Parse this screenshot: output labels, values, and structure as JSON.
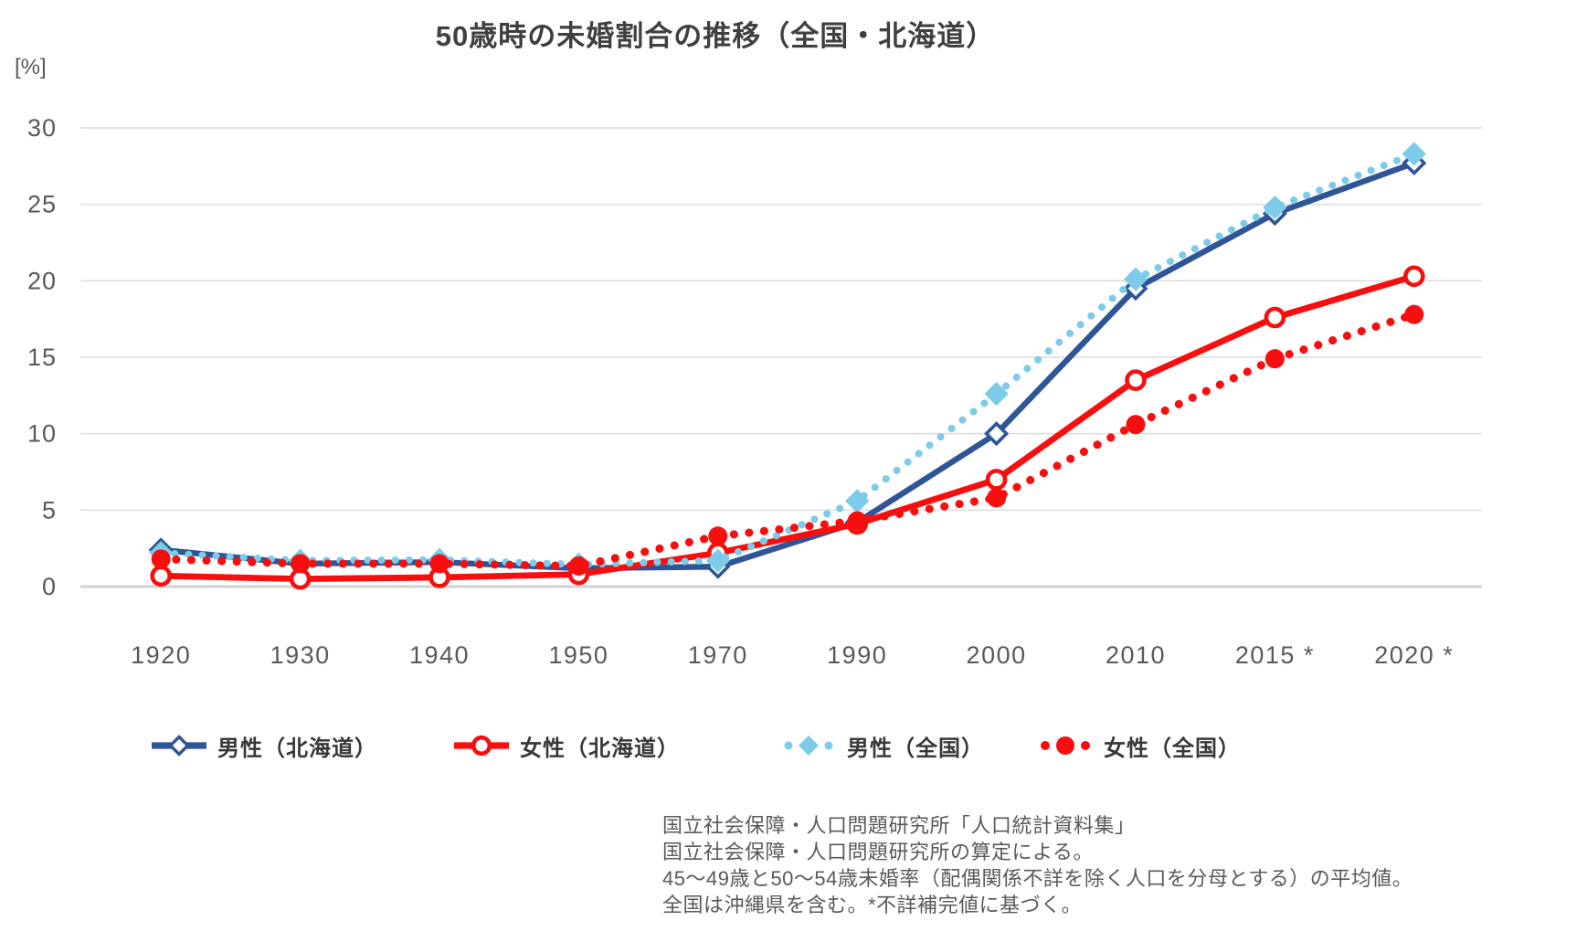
{
  "title": "50歳時の未婚割合の推移（全国・北海道）",
  "y_axis_unit": "[%]",
  "chart_data": {
    "type": "line",
    "categories": [
      "1920",
      "1930",
      "1940",
      "1950",
      "1970",
      "1990",
      "2000",
      "2010",
      "2015 *",
      "2020 *"
    ],
    "series": [
      {
        "name": "男性（北海道）",
        "color": "#2F5597",
        "line": "solid",
        "marker": "open-diamond",
        "values": [
          2.4,
          1.5,
          1.6,
          1.2,
          1.3,
          4.2,
          10.0,
          19.5,
          24.4,
          27.7
        ]
      },
      {
        "name": "女性（北海道）",
        "color": "#F80E0E",
        "line": "solid",
        "marker": "open-circle",
        "values": [
          0.7,
          0.5,
          0.6,
          0.8,
          2.2,
          4.1,
          7.0,
          13.5,
          17.6,
          20.3
        ]
      },
      {
        "name": "男性（全国）",
        "color": "#7CCBE8",
        "line": "dotted",
        "marker": "filled-diamond",
        "values": [
          2.2,
          1.7,
          1.75,
          1.45,
          1.7,
          5.6,
          12.6,
          20.1,
          24.8,
          28.3
        ]
      },
      {
        "name": "女性（全国）",
        "color": "#F80E0E",
        "line": "dotted",
        "marker": "filled-circle",
        "values": [
          1.8,
          1.5,
          1.5,
          1.35,
          3.3,
          4.3,
          5.8,
          10.6,
          14.9,
          17.8
        ]
      }
    ],
    "ylim": [
      0,
      30
    ],
    "yticks": [
      0,
      5,
      10,
      15,
      20,
      25,
      30
    ],
    "grid": true,
    "legend_position": "bottom"
  },
  "notes": [
    "国立社会保障・人口問題研究所「人口統計資料集」",
    "国立社会保障・人口問題研究所の算定による。",
    "45～49歳と50～54歳未婚率（配偶関係不詳を除く人口を分母とする）の平均値。",
    "全国は沖縄県を含む。*不詳補完値に基づく。"
  ],
  "colors": {
    "hokkaido_male": "#2F5597",
    "hokkaido_female": "#F80E0E",
    "national_male": "#7CCBE8",
    "national_female": "#F80E0E",
    "gridline": "#DCDCDC",
    "axis_line": "#D2D2D2",
    "tick_text": "#595959",
    "title_text": "#3F3F3F"
  }
}
